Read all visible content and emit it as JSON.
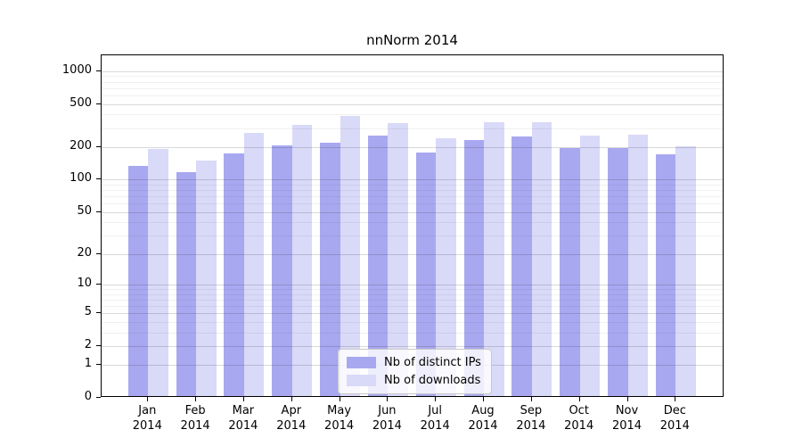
{
  "chart_data": {
    "type": "bar",
    "title": "nnNorm 2014",
    "categories": [
      "Jan",
      "Feb",
      "Mar",
      "Apr",
      "May",
      "Jun",
      "Jul",
      "Aug",
      "Sep",
      "Oct",
      "Nov",
      "Dec"
    ],
    "category_year": "2014",
    "series": [
      {
        "name": "Nb of distinct IPs",
        "color": "#a8a8f0",
        "values": [
          130,
          113,
          170,
          199,
          210,
          248,
          173,
          222,
          243,
          188,
          190,
          165
        ]
      },
      {
        "name": "Nb of downloads",
        "color": "#d9d9f8",
        "values": [
          186,
          144,
          262,
          310,
          372,
          320,
          231,
          325,
          330,
          248,
          251,
          196
        ]
      }
    ],
    "xlabel": "",
    "ylabel": "",
    "y_scale": "log1p",
    "y_ticks": [
      0,
      1,
      2,
      5,
      10,
      20,
      50,
      100,
      200,
      500,
      1000
    ],
    "y_minor_gridlines": [
      3,
      4,
      6,
      7,
      8,
      9,
      30,
      40,
      60,
      70,
      80,
      90,
      300,
      400,
      600,
      700,
      800,
      900
    ],
    "ylim": [
      0,
      1400
    ],
    "grid": true,
    "legend_position": "bottom-center"
  }
}
